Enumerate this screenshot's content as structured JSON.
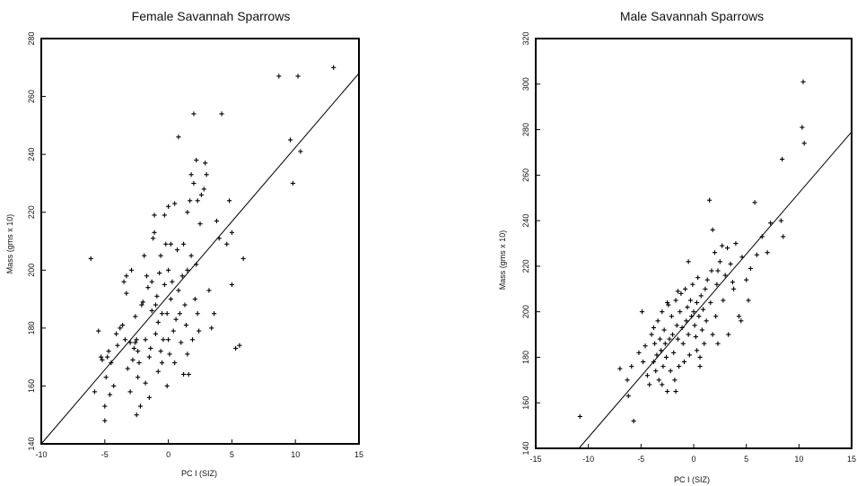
{
  "chart_data": [
    {
      "type": "scatter",
      "title": "Female Savannah Sparrows",
      "xlabel": "PC I (SIZ)",
      "ylabel": "Mass (gms x 10)",
      "xlim": [
        -10,
        15
      ],
      "ylim": [
        140,
        280
      ],
      "xticks": [
        "-10",
        "-5",
        "0",
        "5",
        "10",
        "15"
      ],
      "yticks": [
        "140",
        "160",
        "180",
        "200",
        "220",
        "240",
        "260",
        "280"
      ],
      "marker": "+",
      "fit_line": {
        "x": [
          -10,
          15
        ],
        "y": [
          140,
          268
        ]
      },
      "points": [
        [
          -6.1,
          204
        ],
        [
          -5.8,
          158
        ],
        [
          -5.5,
          179
        ],
        [
          -5.2,
          169
        ],
        [
          -5.0,
          148
        ],
        [
          -5.0,
          153
        ],
        [
          -4.9,
          163
        ],
        [
          -4.8,
          170
        ],
        [
          -4.7,
          172
        ],
        [
          -4.6,
          157
        ],
        [
          -4.5,
          168
        ],
        [
          -4.3,
          160
        ],
        [
          -4.1,
          178
        ],
        [
          -4.0,
          174
        ],
        [
          -3.8,
          180
        ],
        [
          -3.6,
          181
        ],
        [
          -3.4,
          176
        ],
        [
          -3.3,
          192
        ],
        [
          -3.3,
          198
        ],
        [
          -3.2,
          166
        ],
        [
          -3.0,
          175
        ],
        [
          -3.0,
          158
        ],
        [
          -2.9,
          200
        ],
        [
          -2.8,
          169
        ],
        [
          -2.7,
          173
        ],
        [
          -2.6,
          175
        ],
        [
          -2.6,
          184
        ],
        [
          -2.5,
          176
        ],
        [
          -2.5,
          150
        ],
        [
          -2.4,
          163
        ],
        [
          -2.4,
          172
        ],
        [
          -2.3,
          168
        ],
        [
          -2.2,
          153
        ],
        [
          -2.0,
          189
        ],
        [
          -1.9,
          205
        ],
        [
          -1.8,
          176
        ],
        [
          -1.8,
          161
        ],
        [
          -1.7,
          198
        ],
        [
          -1.6,
          194
        ],
        [
          -1.5,
          156
        ],
        [
          -1.5,
          170
        ],
        [
          -1.4,
          173
        ],
        [
          -1.3,
          186
        ],
        [
          -1.3,
          196
        ],
        [
          -1.2,
          211
        ],
        [
          -1.1,
          219
        ],
        [
          -1.0,
          188
        ],
        [
          -1.0,
          178
        ],
        [
          -0.9,
          191
        ],
        [
          -0.8,
          165
        ],
        [
          -0.8,
          182
        ],
        [
          -0.7,
          199
        ],
        [
          -0.6,
          172
        ],
        [
          -0.6,
          205
        ],
        [
          -0.5,
          168
        ],
        [
          -0.5,
          185
        ],
        [
          -0.4,
          176
        ],
        [
          -0.3,
          219
        ],
        [
          -0.3,
          195
        ],
        [
          -0.2,
          209
        ],
        [
          -0.1,
          185
        ],
        [
          -0.1,
          160
        ],
        [
          0.0,
          222
        ],
        [
          0.0,
          200
        ],
        [
          0.0,
          176
        ],
        [
          0.1,
          171
        ],
        [
          0.2,
          209
        ],
        [
          0.2,
          190
        ],
        [
          0.3,
          196
        ],
        [
          0.4,
          179
        ],
        [
          0.5,
          168
        ],
        [
          0.5,
          223
        ],
        [
          0.6,
          183
        ],
        [
          0.7,
          207
        ],
        [
          0.8,
          246
        ],
        [
          0.8,
          193
        ],
        [
          0.9,
          185
        ],
        [
          1.0,
          175
        ],
        [
          1.1,
          198
        ],
        [
          1.2,
          164
        ],
        [
          1.2,
          209
        ],
        [
          1.3,
          188
        ],
        [
          1.4,
          181
        ],
        [
          1.5,
          200
        ],
        [
          1.5,
          171
        ],
        [
          1.6,
          164
        ],
        [
          1.7,
          224
        ],
        [
          1.8,
          233
        ],
        [
          1.8,
          205
        ],
        [
          1.9,
          176
        ],
        [
          2.0,
          254
        ],
        [
          2.0,
          230
        ],
        [
          2.1,
          190
        ],
        [
          2.2,
          202
        ],
        [
          2.2,
          238
        ],
        [
          2.3,
          224
        ],
        [
          2.3,
          185
        ],
        [
          2.4,
          179
        ],
        [
          2.5,
          216
        ],
        [
          2.6,
          226
        ],
        [
          2.8,
          228
        ],
        [
          2.9,
          237
        ],
        [
          3.0,
          233
        ],
        [
          3.2,
          193
        ],
        [
          3.4,
          180
        ],
        [
          3.6,
          185
        ],
        [
          3.8,
          217
        ],
        [
          4.0,
          211
        ],
        [
          4.2,
          254
        ],
        [
          4.6,
          209
        ],
        [
          4.8,
          224
        ],
        [
          5.0,
          195
        ],
        [
          5.3,
          173
        ],
        [
          5.6,
          174
        ],
        [
          5.9,
          204
        ],
        [
          5.0,
          213
        ],
        [
          8.7,
          267
        ],
        [
          9.6,
          245
        ],
        [
          9.8,
          230
        ],
        [
          10.2,
          267
        ],
        [
          10.4,
          241
        ],
        [
          13.0,
          270
        ],
        [
          -5.3,
          170
        ],
        [
          -3.5,
          196
        ],
        [
          -1.1,
          213
        ],
        [
          1.5,
          220
        ],
        [
          -2.1,
          188
        ]
      ]
    },
    {
      "type": "scatter",
      "title": "Male Savannah Sparrows",
      "xlabel": "PC I (SIZ)",
      "ylabel": "Mass (gms x 10)",
      "xlim": [
        -15,
        15
      ],
      "ylim": [
        140,
        320
      ],
      "xticks": [
        "-15",
        "-10",
        "-5",
        "0",
        "5",
        "10",
        "15"
      ],
      "yticks": [
        "140",
        "160",
        "180",
        "200",
        "220",
        "240",
        "260",
        "280",
        "300",
        "320"
      ],
      "marker": "+",
      "fit_line": {
        "x": [
          -10.9,
          15
        ],
        "y": [
          140,
          279
        ]
      },
      "points": [
        [
          -10.8,
          154
        ],
        [
          -5.7,
          152
        ],
        [
          -7.0,
          175
        ],
        [
          -6.3,
          170
        ],
        [
          -5.9,
          176
        ],
        [
          -5.2,
          182
        ],
        [
          -4.8,
          178
        ],
        [
          -4.6,
          185
        ],
        [
          -4.4,
          172
        ],
        [
          -4.2,
          168
        ],
        [
          -4.0,
          190
        ],
        [
          -3.8,
          178
        ],
        [
          -3.7,
          186
        ],
        [
          -3.6,
          174
        ],
        [
          -3.5,
          181
        ],
        [
          -3.4,
          196
        ],
        [
          -3.3,
          170
        ],
        [
          -3.2,
          188
        ],
        [
          -3.1,
          183
        ],
        [
          -3.0,
          200
        ],
        [
          -2.9,
          176
        ],
        [
          -2.8,
          192
        ],
        [
          -2.7,
          186
        ],
        [
          -2.6,
          180
        ],
        [
          -2.5,
          165
        ],
        [
          -2.4,
          203
        ],
        [
          -2.3,
          188
        ],
        [
          -2.2,
          174
        ],
        [
          -2.1,
          198
        ],
        [
          -2.0,
          190
        ],
        [
          -1.9,
          182
        ],
        [
          -1.8,
          170
        ],
        [
          -1.7,
          205
        ],
        [
          -1.6,
          194
        ],
        [
          -1.5,
          188
        ],
        [
          -1.4,
          176
        ],
        [
          -1.3,
          200
        ],
        [
          -1.2,
          208
        ],
        [
          -1.1,
          193
        ],
        [
          -1.0,
          186
        ],
        [
          -0.9,
          178
        ],
        [
          -0.8,
          210
        ],
        [
          -0.7,
          196
        ],
        [
          -0.6,
          202
        ],
        [
          -0.5,
          190
        ],
        [
          -0.4,
          181
        ],
        [
          -0.3,
          205
        ],
        [
          -0.2,
          198
        ],
        [
          -0.1,
          212
        ],
        [
          0.0,
          200
        ],
        [
          0.1,
          194
        ],
        [
          0.2,
          189
        ],
        [
          0.3,
          204
        ],
        [
          0.4,
          215
        ],
        [
          0.5,
          198
        ],
        [
          0.6,
          180
        ],
        [
          0.7,
          207
        ],
        [
          0.8,
          192
        ],
        [
          0.9,
          201
        ],
        [
          1.0,
          186
        ],
        [
          1.1,
          210
        ],
        [
          1.2,
          196
        ],
        [
          1.3,
          214
        ],
        [
          1.5,
          249
        ],
        [
          1.6,
          204
        ],
        [
          1.7,
          218
        ],
        [
          1.8,
          190
        ],
        [
          2.0,
          226
        ],
        [
          2.1,
          198
        ],
        [
          2.2,
          212
        ],
        [
          2.3,
          186
        ],
        [
          2.5,
          222
        ],
        [
          2.7,
          229
        ],
        [
          2.8,
          205
        ],
        [
          3.0,
          216
        ],
        [
          3.2,
          228
        ],
        [
          3.3,
          190
        ],
        [
          3.5,
          221
        ],
        [
          3.7,
          213
        ],
        [
          4.0,
          230
        ],
        [
          4.3,
          198
        ],
        [
          4.6,
          224
        ],
        [
          5.0,
          214
        ],
        [
          5.2,
          205
        ],
        [
          5.4,
          219
        ],
        [
          5.8,
          248
        ],
        [
          6.0,
          225
        ],
        [
          6.5,
          233
        ],
        [
          7.0,
          226
        ],
        [
          7.3,
          239
        ],
        [
          8.4,
          267
        ],
        [
          8.3,
          240
        ],
        [
          8.5,
          233
        ],
        [
          10.3,
          281
        ],
        [
          10.5,
          274
        ],
        [
          10.4,
          301
        ],
        [
          -6.2,
          163
        ],
        [
          -4.9,
          200
        ],
        [
          -3.0,
          168
        ],
        [
          -1.5,
          209
        ],
        [
          0.6,
          176
        ],
        [
          -2.5,
          204
        ],
        [
          -0.5,
          222
        ],
        [
          2.3,
          218
        ],
        [
          1.8,
          236
        ],
        [
          4.5,
          196
        ],
        [
          3.8,
          210
        ],
        [
          -1.7,
          165
        ],
        [
          0.3,
          183
        ],
        [
          -3.8,
          193
        ]
      ]
    }
  ]
}
